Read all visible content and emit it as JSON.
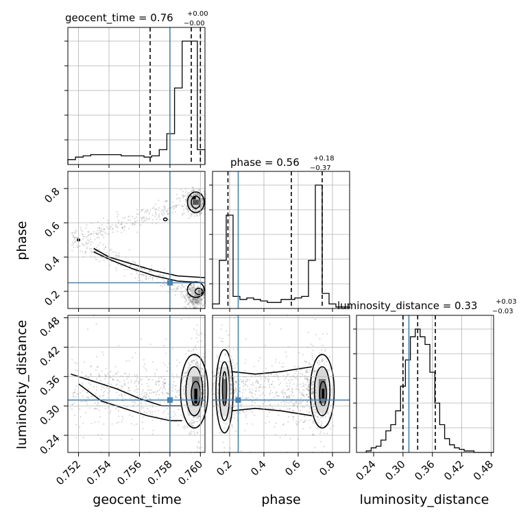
{
  "chart_data": {
    "type": "corner",
    "parameters": [
      "geocent_time",
      "phase",
      "luminosity_distance"
    ],
    "truth_color": "#4682b4",
    "titles": [
      {
        "param": "geocent_time",
        "text": "geocent_time = 0.76",
        "plus": "+0.00",
        "minus": "−0.00"
      },
      {
        "param": "phase",
        "text": "phase = 0.56",
        "plus": "+0.18",
        "minus": "−0.37"
      },
      {
        "param": "luminosity_distance",
        "text": "luminosity_distance = 0.33",
        "plus": "+0.03",
        "minus": "−0.03"
      }
    ],
    "axes": {
      "geocent_time": {
        "range": [
          0.7513,
          0.7603
        ],
        "ticks": [
          "0.752",
          "0.754",
          "0.756",
          "0.758",
          "0.760"
        ],
        "tick_values": [
          0.752,
          0.754,
          0.756,
          0.758,
          0.76
        ],
        "truth": 0.758,
        "quantiles": [
          0.7567,
          0.7594,
          0.76
        ]
      },
      "phase": {
        "range": [
          0.1,
          0.9
        ],
        "ticks": [
          "0.2",
          "0.4",
          "0.6",
          "0.8"
        ],
        "tick_values": [
          0.2,
          0.4,
          0.6,
          0.8
        ],
        "truth": 0.25,
        "quantiles": [
          0.19,
          0.56,
          0.74
        ]
      },
      "luminosity_distance": {
        "range": [
          0.205,
          0.485
        ],
        "ticks": [
          "0.24",
          "0.30",
          "0.36",
          "0.42",
          "0.48"
        ],
        "tick_values": [
          0.24,
          0.3,
          0.36,
          0.42,
          0.48
        ],
        "truth": 0.312,
        "quantiles": [
          0.3,
          0.33,
          0.366
        ]
      }
    },
    "histograms": {
      "geocent_time": {
        "edges": [
          0.7513,
          0.7518,
          0.7523,
          0.7528,
          0.7533,
          0.7538,
          0.7543,
          0.7548,
          0.7553,
          0.7558,
          0.7563,
          0.7568,
          0.7573,
          0.7578,
          0.7583,
          0.7588,
          0.7593,
          0.7598,
          0.7603
        ],
        "counts": [
          4,
          6,
          7,
          8,
          8,
          8,
          8,
          7,
          7,
          7,
          6,
          7,
          12,
          25,
          62,
          100,
          100,
          12
        ]
      },
      "phase": {
        "edges": [
          0.1,
          0.14,
          0.18,
          0.22,
          0.26,
          0.3,
          0.34,
          0.38,
          0.42,
          0.46,
          0.5,
          0.54,
          0.58,
          0.62,
          0.66,
          0.7,
          0.74,
          0.78,
          0.82,
          0.86,
          0.9
        ],
        "counts": [
          3,
          32,
          62,
          8,
          6,
          7,
          6,
          5,
          4,
          4,
          6,
          6,
          7,
          8,
          32,
          82,
          10,
          3,
          1,
          1
        ]
      },
      "luminosity_distance": {
        "edges": [
          0.225,
          0.235,
          0.245,
          0.255,
          0.265,
          0.275,
          0.285,
          0.295,
          0.305,
          0.315,
          0.325,
          0.335,
          0.345,
          0.355,
          0.365,
          0.375,
          0.385,
          0.395,
          0.405,
          0.415,
          0.425,
          0.435,
          0.445,
          0.455,
          0.465,
          0.475,
          0.485
        ],
        "counts": [
          1,
          3,
          4,
          8,
          14,
          18,
          27,
          43,
          60,
          75,
          80,
          75,
          70,
          52,
          32,
          18,
          9,
          5,
          3,
          2,
          1,
          1,
          0,
          0,
          0,
          0
        ]
      }
    }
  }
}
